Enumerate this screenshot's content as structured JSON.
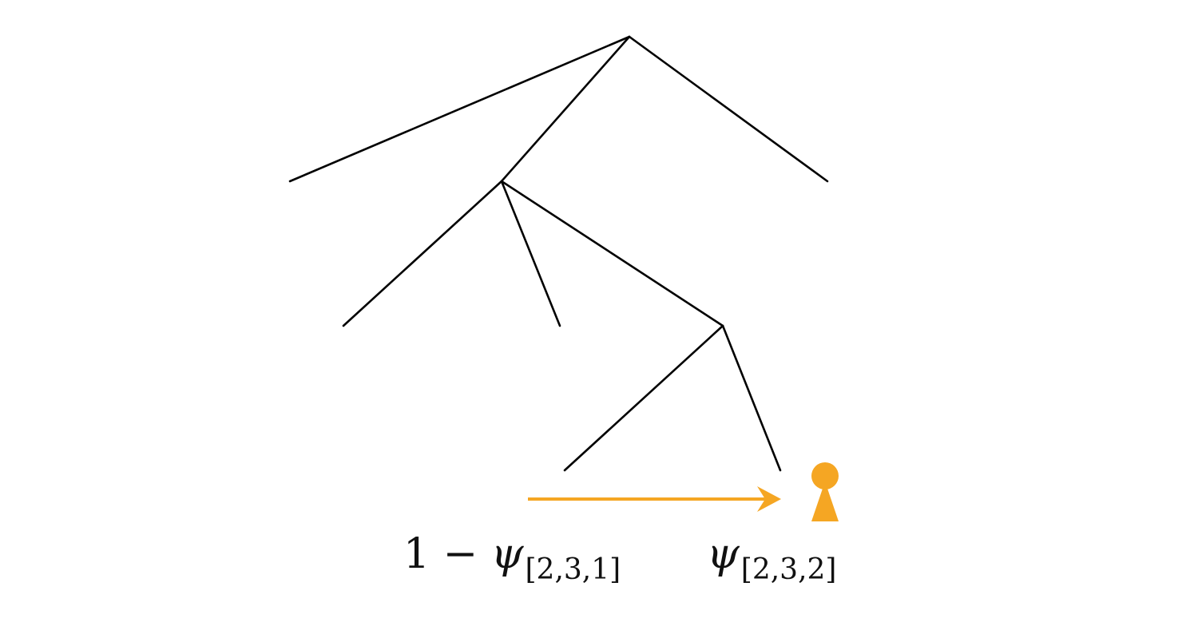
{
  "colors": {
    "tree_stroke": "#000000",
    "highlight": "#F5A623",
    "background": "#ffffff"
  },
  "labels": {
    "left": {
      "prefix": "1 − ",
      "symbol": "ψ",
      "subscript": "[2,3,1]"
    },
    "right": {
      "symbol": "ψ",
      "subscript": "[2,3,2]"
    }
  },
  "icons": {
    "move_arrow": "right-arrow",
    "player": "pawn-icon"
  }
}
